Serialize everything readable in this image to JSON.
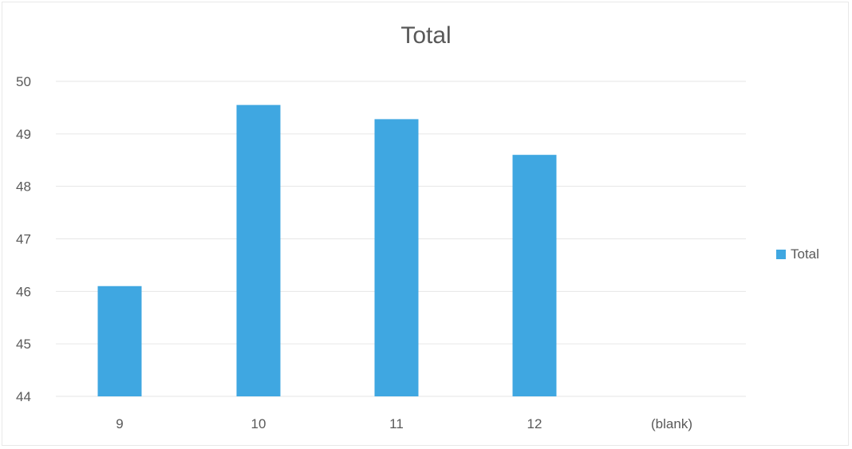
{
  "chart_data": {
    "type": "bar",
    "title": "Total",
    "xlabel": "",
    "ylabel": "",
    "categories": [
      "9",
      "10",
      "11",
      "12",
      "(blank)"
    ],
    "series": [
      {
        "name": "Total",
        "values": [
          46.1,
          49.55,
          49.28,
          48.6,
          null
        ]
      }
    ],
    "ylim": [
      44,
      50
    ],
    "yticks": [
      "44",
      "45",
      "46",
      "47",
      "48",
      "49",
      "50"
    ],
    "grid": true,
    "legend_position": "right",
    "colors": {
      "bar": "#3fa7e1",
      "grid": "#e6e6e6",
      "text": "#595959"
    }
  }
}
